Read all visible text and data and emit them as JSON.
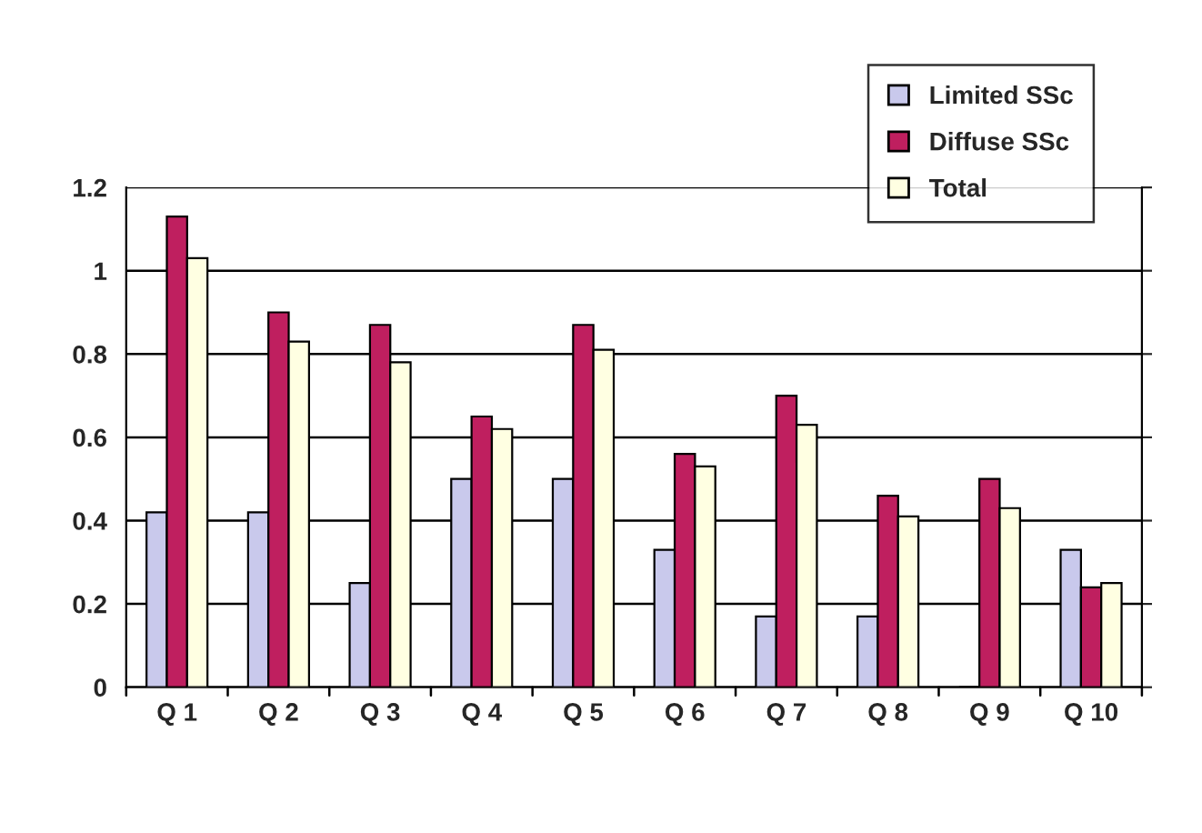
{
  "chart_data": {
    "type": "bar",
    "categories": [
      "Q 1",
      "Q 2",
      "Q 3",
      "Q 4",
      "Q 5",
      "Q 6",
      "Q 7",
      "Q 8",
      "Q 9",
      "Q 10"
    ],
    "series": [
      {
        "name": "Limited SSc",
        "color": "#c9c9ec",
        "values": [
          0.42,
          0.42,
          0.25,
          0.5,
          0.5,
          0.33,
          0.17,
          0.17,
          0,
          0.33
        ]
      },
      {
        "name": "Diffuse SSc",
        "color": "#bf1f5f",
        "values": [
          1.13,
          0.9,
          0.87,
          0.65,
          0.87,
          0.56,
          0.7,
          0.46,
          0.5,
          0.24
        ]
      },
      {
        "name": "Total",
        "color": "#ffffe2",
        "values": [
          1.03,
          0.83,
          0.78,
          0.62,
          0.81,
          0.53,
          0.63,
          0.41,
          0.43,
          0.25
        ]
      }
    ],
    "ylim": [
      0,
      1.2
    ],
    "yticks": [
      0,
      0.2,
      0.4,
      0.6,
      0.8,
      1,
      1.2
    ],
    "grid": "y",
    "legend": "top right"
  }
}
